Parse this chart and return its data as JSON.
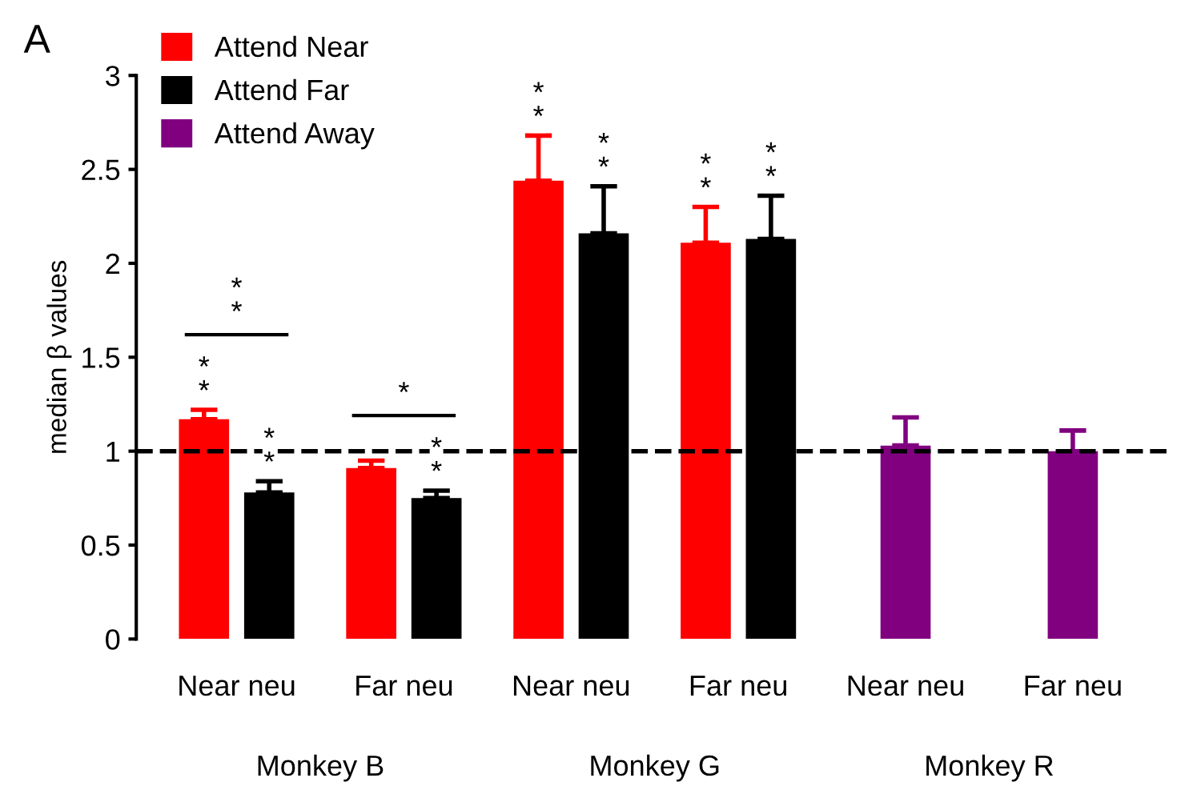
{
  "chart_data": {
    "type": "bar",
    "ylabel": "median β values",
    "categories": [
      "Near neu",
      "Far neu",
      "Near neu",
      "Far neu",
      "Near neu",
      "Far neu"
    ],
    "series": [
      {
        "name": "Attend Near",
        "color": "#ff0000",
        "values": [
          1.17,
          0.91,
          2.44,
          2.11,
          null,
          null
        ],
        "errors": [
          [
            1.17,
            1.22
          ],
          [
            0.91,
            0.95
          ],
          [
            2.44,
            2.68
          ],
          [
            2.11,
            2.3
          ],
          null,
          null
        ],
        "value_labels": [
          "**",
          null,
          "**",
          "**",
          null,
          null
        ]
      },
      {
        "name": "Attend Far",
        "color": "#000000",
        "values": [
          0.78,
          0.75,
          2.16,
          2.13,
          null,
          null
        ],
        "errors": [
          [
            0.78,
            0.84
          ],
          [
            0.75,
            0.79
          ],
          [
            2.16,
            2.41
          ],
          [
            2.13,
            2.36
          ],
          null,
          null
        ],
        "value_labels": [
          "**",
          "**",
          "**",
          "**",
          null,
          null
        ]
      },
      {
        "name": "Attend Away",
        "color": "#800080",
        "values": [
          null,
          null,
          null,
          null,
          1.03,
          1.0
        ],
        "errors": [
          null,
          null,
          null,
          null,
          [
            1.03,
            1.18
          ],
          [
            1.0,
            1.11
          ]
        ],
        "value_labels": [
          null,
          null,
          null,
          null,
          null,
          null
        ]
      }
    ],
    "ylim": [
      0,
      3
    ],
    "yticks": [
      0,
      0.5,
      1,
      1.5,
      2,
      2.5,
      3
    ],
    "ref_lines": [
      {
        "axis": "y",
        "value": 1,
        "color": "#000000",
        "line_style": "dashed"
      }
    ],
    "annotations": [
      "A",
      "Monkey B",
      "Monkey G",
      "Monkey R",
      "**",
      "*"
    ],
    "legend": "top left",
    "grid": false
  }
}
